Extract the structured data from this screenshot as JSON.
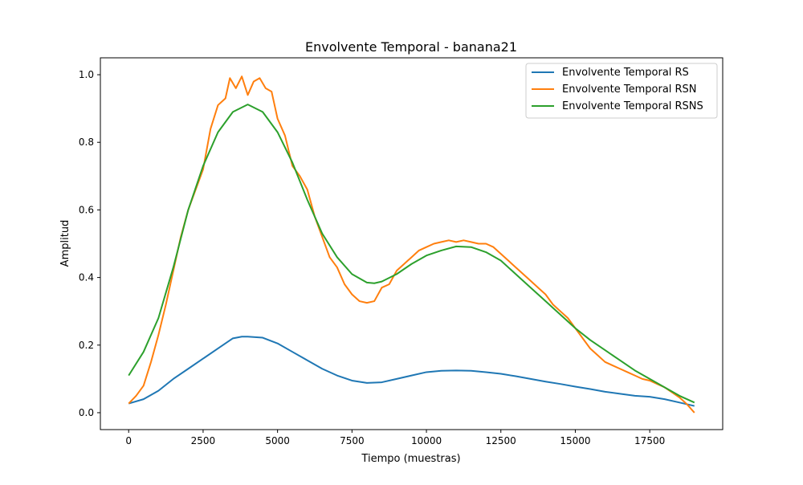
{
  "chart_data": {
    "type": "line",
    "title": "Envolvente Temporal - banana21",
    "xlabel": "Tiempo (muestras)",
    "ylabel": "Amplitud",
    "xlim": [
      -950,
      19950
    ],
    "ylim": [
      -0.05,
      1.05
    ],
    "xticks": [
      0,
      2500,
      5000,
      7500,
      10000,
      12500,
      15000,
      17500
    ],
    "yticks": [
      0.0,
      0.2,
      0.4,
      0.6,
      0.8,
      1.0
    ],
    "xtick_labels": [
      "0",
      "2500",
      "5000",
      "7500",
      "10000",
      "12500",
      "15000",
      "17500"
    ],
    "ytick_labels": [
      "0.0",
      "0.2",
      "0.4",
      "0.6",
      "0.8",
      "1.0"
    ],
    "grid": false,
    "legend_position": "top-right",
    "series": [
      {
        "name": "Envolvente Temporal RS",
        "color": "#1f77b4",
        "x": [
          0,
          500,
          1000,
          1500,
          2000,
          2500,
          3000,
          3500,
          3800,
          4000,
          4500,
          5000,
          5500,
          6000,
          6500,
          7000,
          7500,
          8000,
          8500,
          9000,
          9500,
          10000,
          10500,
          11000,
          11500,
          12000,
          12500,
          13000,
          13500,
          14000,
          14500,
          15000,
          15500,
          16000,
          16500,
          17000,
          17500,
          18000,
          18500,
          19000
        ],
        "y": [
          0.027,
          0.04,
          0.065,
          0.1,
          0.13,
          0.16,
          0.19,
          0.22,
          0.225,
          0.225,
          0.222,
          0.205,
          0.18,
          0.155,
          0.13,
          0.11,
          0.095,
          0.088,
          0.09,
          0.1,
          0.11,
          0.12,
          0.124,
          0.125,
          0.124,
          0.12,
          0.115,
          0.108,
          0.1,
          0.092,
          0.085,
          0.077,
          0.07,
          0.062,
          0.056,
          0.05,
          0.047,
          0.04,
          0.03,
          0.02
        ]
      },
      {
        "name": "Envolvente Temporal RSN",
        "color": "#ff7f0e",
        "x": [
          0,
          250,
          500,
          750,
          1000,
          1250,
          1500,
          1750,
          2000,
          2250,
          2500,
          2750,
          3000,
          3250,
          3400,
          3600,
          3800,
          4000,
          4200,
          4400,
          4600,
          4800,
          5000,
          5250,
          5500,
          5750,
          6000,
          6250,
          6500,
          6750,
          7000,
          7250,
          7500,
          7750,
          8000,
          8250,
          8500,
          8750,
          9000,
          9250,
          9500,
          9750,
          10000,
          10250,
          10500,
          10750,
          11000,
          11250,
          11500,
          11750,
          12000,
          12250,
          12500,
          12750,
          13000,
          13250,
          13500,
          13750,
          14000,
          14250,
          14500,
          14750,
          15000,
          15250,
          15500,
          15750,
          16000,
          16250,
          16500,
          16750,
          17000,
          17250,
          17500,
          17750,
          18000,
          18250,
          18500,
          18750,
          19000
        ],
        "y": [
          0.027,
          0.05,
          0.08,
          0.15,
          0.23,
          0.32,
          0.42,
          0.52,
          0.6,
          0.66,
          0.72,
          0.84,
          0.91,
          0.93,
          0.99,
          0.96,
          0.995,
          0.94,
          0.98,
          0.99,
          0.96,
          0.95,
          0.87,
          0.82,
          0.73,
          0.7,
          0.66,
          0.58,
          0.52,
          0.46,
          0.43,
          0.38,
          0.35,
          0.33,
          0.325,
          0.33,
          0.37,
          0.38,
          0.42,
          0.44,
          0.46,
          0.48,
          0.49,
          0.5,
          0.505,
          0.51,
          0.505,
          0.51,
          0.505,
          0.5,
          0.5,
          0.49,
          0.47,
          0.45,
          0.43,
          0.41,
          0.39,
          0.37,
          0.35,
          0.32,
          0.3,
          0.28,
          0.25,
          0.22,
          0.19,
          0.17,
          0.15,
          0.14,
          0.13,
          0.12,
          0.11,
          0.1,
          0.095,
          0.085,
          0.075,
          0.06,
          0.045,
          0.025,
          0.0
        ]
      },
      {
        "name": "Envolvente Temporal RSNS",
        "color": "#2ca02c",
        "x": [
          0,
          500,
          1000,
          1500,
          2000,
          2500,
          3000,
          3500,
          4000,
          4500,
          5000,
          5500,
          6000,
          6500,
          7000,
          7500,
          8000,
          8250,
          8500,
          9000,
          9500,
          10000,
          10500,
          11000,
          11500,
          12000,
          12500,
          13000,
          13500,
          14000,
          14500,
          15000,
          15500,
          16000,
          16500,
          17000,
          17500,
          18000,
          18500,
          19000
        ],
        "y": [
          0.11,
          0.18,
          0.28,
          0.43,
          0.6,
          0.73,
          0.83,
          0.89,
          0.912,
          0.89,
          0.83,
          0.74,
          0.63,
          0.53,
          0.46,
          0.41,
          0.385,
          0.383,
          0.388,
          0.41,
          0.44,
          0.465,
          0.48,
          0.492,
          0.49,
          0.475,
          0.45,
          0.41,
          0.37,
          0.33,
          0.29,
          0.25,
          0.215,
          0.185,
          0.155,
          0.125,
          0.1,
          0.075,
          0.05,
          0.03
        ]
      }
    ]
  }
}
